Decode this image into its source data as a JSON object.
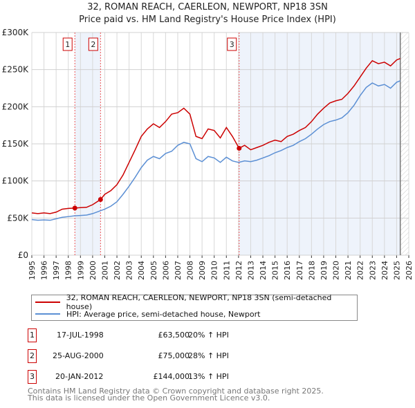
{
  "header": {
    "title": "32, ROMAN REACH, CAERLEON, NEWPORT, NP18 3SN",
    "subtitle": "Price paid vs. HM Land Registry's House Price Index (HPI)"
  },
  "colors": {
    "property": "#cc0000",
    "hpi": "#5b8fd4",
    "shade": "#eef3fb"
  },
  "chart_data": {
    "type": "line",
    "title": "Price paid vs. HM Land Registry's House Price Index (HPI)",
    "xlim": [
      1995,
      2026
    ],
    "ylim": [
      0,
      300000
    ],
    "y_ticks": [
      {
        "v": 0,
        "label": "£0"
      },
      {
        "v": 50000,
        "label": "£50K"
      },
      {
        "v": 100000,
        "label": "£100K"
      },
      {
        "v": 150000,
        "label": "£150K"
      },
      {
        "v": 200000,
        "label": "£200K"
      },
      {
        "v": 250000,
        "label": "£250K"
      },
      {
        "v": 300000,
        "label": "£300K"
      }
    ],
    "x_ticks": [
      "1995",
      "1996",
      "1997",
      "1998",
      "1999",
      "2000",
      "2001",
      "2002",
      "2003",
      "2004",
      "2005",
      "2006",
      "2007",
      "2008",
      "2009",
      "2010",
      "2011",
      "2012",
      "2013",
      "2014",
      "2015",
      "2016",
      "2017",
      "2018",
      "2019",
      "2020",
      "2021",
      "2022",
      "2023",
      "2024",
      "2025",
      "2026"
    ],
    "series": [
      {
        "name": "32, ROMAN REACH, CAERLEON, NEWPORT, NP18 3SN (semi-detached house)",
        "color": "#cc0000",
        "x": [
          1995,
          1995.5,
          1996,
          1996.5,
          1997,
          1997.5,
          1998,
          1998.54,
          1999,
          1999.5,
          2000,
          2000.65,
          2001,
          2001.5,
          2002,
          2002.5,
          2003,
          2003.5,
          2004,
          2004.5,
          2005,
          2005.5,
          2006,
          2006.5,
          2007,
          2007.5,
          2008,
          2008.5,
          2009,
          2009.5,
          2010,
          2010.5,
          2011,
          2011.5,
          2012.05,
          2012.5,
          2013,
          2013.5,
          2014,
          2014.5,
          2015,
          2015.5,
          2016,
          2016.5,
          2017,
          2017.5,
          2018,
          2018.5,
          2019,
          2019.5,
          2020,
          2020.5,
          2021,
          2021.5,
          2022,
          2022.5,
          2023,
          2023.5,
          2024,
          2024.5,
          2025,
          2025.3
        ],
        "y": [
          57000,
          56000,
          57000,
          56000,
          58000,
          62000,
          63000,
          63500,
          64000,
          64500,
          68000,
          75000,
          82000,
          87000,
          95000,
          108000,
          125000,
          142000,
          160000,
          170000,
          177000,
          172000,
          180000,
          190000,
          192000,
          198000,
          190000,
          160000,
          157000,
          170000,
          168000,
          158000,
          172000,
          160000,
          144000,
          148000,
          142000,
          145000,
          148000,
          152000,
          155000,
          153000,
          160000,
          163000,
          168000,
          172000,
          180000,
          190000,
          198000,
          205000,
          208000,
          210000,
          218000,
          228000,
          240000,
          252000,
          262000,
          258000,
          260000,
          255000,
          263000,
          265000
        ]
      },
      {
        "name": "HPI: Average price, semi-detached house, Newport",
        "color": "#5b8fd4",
        "x": [
          1995,
          1995.5,
          1996,
          1996.5,
          1997,
          1997.5,
          1998,
          1998.5,
          1999,
          1999.5,
          2000,
          2000.5,
          2001,
          2001.5,
          2002,
          2002.5,
          2003,
          2003.5,
          2004,
          2004.5,
          2005,
          2005.5,
          2006,
          2006.5,
          2007,
          2007.5,
          2008,
          2008.5,
          2009,
          2009.5,
          2010,
          2010.5,
          2011,
          2011.5,
          2012,
          2012.5,
          2013,
          2013.5,
          2014,
          2014.5,
          2015,
          2015.5,
          2016,
          2016.5,
          2017,
          2017.5,
          2018,
          2018.5,
          2019,
          2019.5,
          2020,
          2020.5,
          2021,
          2021.5,
          2022,
          2022.5,
          2023,
          2023.5,
          2024,
          2024.5,
          2025,
          2025.3
        ],
        "y": [
          48000,
          47000,
          47500,
          47000,
          49000,
          51000,
          52000,
          53000,
          53500,
          54000,
          56000,
          59000,
          62000,
          66000,
          72000,
          82000,
          93000,
          105000,
          118000,
          128000,
          133000,
          130000,
          137000,
          140000,
          148000,
          152000,
          150000,
          130000,
          126000,
          133000,
          131000,
          125000,
          132000,
          127000,
          125000,
          127000,
          126000,
          128000,
          131000,
          134000,
          138000,
          141000,
          145000,
          148000,
          153000,
          157000,
          163000,
          170000,
          176000,
          180000,
          182000,
          185000,
          192000,
          202000,
          215000,
          226000,
          232000,
          228000,
          230000,
          225000,
          233000,
          235000
        ]
      }
    ],
    "sales": [
      {
        "label": "1",
        "x": 1998.54,
        "date": "17-JUL-1998",
        "price": "£63,500",
        "value": 63500,
        "hpi": "20% ↑ HPI"
      },
      {
        "label": "2",
        "x": 2000.65,
        "date": "25-AUG-2000",
        "price": "£75,000",
        "value": 75000,
        "hpi": "28% ↑ HPI"
      },
      {
        "label": "3",
        "x": 2012.05,
        "date": "20-JAN-2012",
        "price": "£144,000",
        "value": 144000,
        "hpi": "13% ↑ HPI"
      }
    ],
    "forecast_start": 2025.3,
    "legend_position": "bottom"
  },
  "footer": {
    "line1": "Contains HM Land Registry data © Crown copyright and database right 2025.",
    "line2": "This data is licensed under the Open Government Licence v3.0."
  }
}
